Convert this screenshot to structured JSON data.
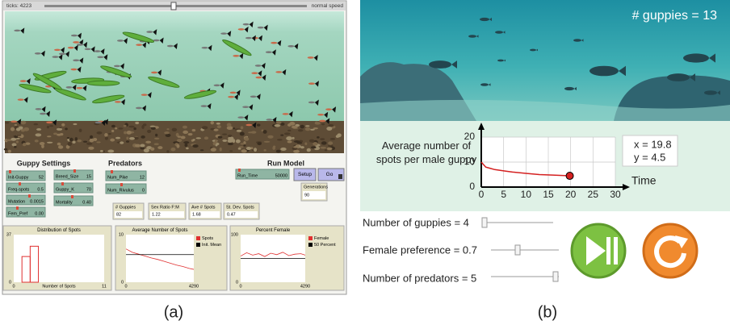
{
  "panel_a": {
    "ticks": "ticks: 4223",
    "speed": "normal speed",
    "sections": [
      "Guppy Settings",
      "Predators",
      "Run Model"
    ],
    "sliders": [
      {
        "label": "Init-Guppy",
        "value": "52"
      },
      {
        "label": "Freq-spots",
        "value": "0.5"
      },
      {
        "label": "Mutation",
        "value": "0.0015"
      },
      {
        "label": "Fem_Pref",
        "value": "0.00"
      },
      {
        "label": "Breed_Size",
        "value": "15"
      },
      {
        "label": "Guppy_K",
        "value": "70"
      },
      {
        "label": "Mortality",
        "value": "0.40"
      },
      {
        "label": "Num_Pike",
        "value": "12"
      },
      {
        "label": "Num_Rivulus",
        "value": "0"
      },
      {
        "label": "Run_Time",
        "value": "50000"
      }
    ],
    "buttons": [
      "Setup",
      "Go"
    ],
    "monitors": [
      {
        "label": "Generations",
        "value": "90"
      },
      {
        "label": "# Guppies",
        "value": "82"
      },
      {
        "label": "Sex Ratio F:M",
        "value": "1.22"
      },
      {
        "label": "Ave # Spots",
        "value": "1.68"
      },
      {
        "label": "St. Dev. Spots",
        "value": "0.47"
      }
    ]
  },
  "panel_b": {
    "count": "# guppies = 13",
    "readout": [
      "x = 19.8",
      "y = 4.5"
    ],
    "controls": [
      "Number of guppies = 4",
      "Female preference = 0.7",
      "Number of predators = 5"
    ]
  },
  "captions": [
    "(a)",
    "(b)"
  ],
  "chart_data": [
    {
      "type": "histogram",
      "title": "Distribution of Spots",
      "x_label": "Number of Spots",
      "bins": [
        0,
        1,
        2,
        3,
        4,
        5,
        6,
        7,
        8,
        9,
        10,
        11
      ],
      "values": [
        0,
        20,
        28,
        0,
        0,
        0,
        0,
        0,
        0,
        0,
        0
      ],
      "color": "#e03030",
      "xlim": [
        0,
        11
      ],
      "xticks": [
        0,
        11
      ],
      "ylim": [
        0,
        37
      ],
      "yticks": [
        0,
        37
      ]
    },
    {
      "type": "line",
      "title": "Average Number of Spots",
      "x": [
        0,
        400,
        800,
        1200,
        1600,
        2000,
        2400,
        2800,
        3200,
        3600,
        4000,
        4290
      ],
      "series": [
        {
          "name": "Spots",
          "color": "#e03030",
          "values": [
            7.0,
            6.3,
            5.9,
            5.5,
            5.1,
            4.8,
            4.4,
            4.0,
            3.6,
            3.3,
            2.9,
            2.7
          ]
        },
        {
          "name": "Init. Mean",
          "color": "#000000",
          "values": [
            5.8,
            5.8,
            5.8,
            5.8,
            5.8,
            5.8,
            5.8,
            5.8,
            5.8,
            5.8,
            5.8,
            5.8
          ]
        }
      ],
      "xlim": [
        0,
        4290
      ],
      "xticks": [
        0,
        4290
      ],
      "ylim": [
        0,
        10
      ],
      "yticks": [
        0,
        10
      ]
    },
    {
      "type": "line",
      "title": "Percent Female",
      "x": [
        0,
        400,
        800,
        1200,
        1600,
        2000,
        2400,
        2800,
        3200,
        3600,
        4000,
        4290
      ],
      "series": [
        {
          "name": "Female",
          "color": "#e03030",
          "values": [
            55,
            62,
            57,
            60,
            54,
            61,
            58,
            63,
            56,
            59,
            60,
            57
          ]
        },
        {
          "name": "50 Percent",
          "color": "#000000",
          "values": [
            50,
            50,
            50,
            50,
            50,
            50,
            50,
            50,
            50,
            50,
            50,
            50
          ]
        }
      ],
      "xlim": [
        0,
        4290
      ],
      "xticks": [
        0,
        4290
      ],
      "ylim": [
        0,
        100
      ],
      "yticks": [
        0,
        100
      ]
    },
    {
      "type": "line",
      "y_label": "Average number of spots per male guppy",
      "x_label": "Time",
      "x": [
        0,
        0.5,
        1,
        2,
        3,
        5,
        7,
        10,
        13,
        16,
        19.8
      ],
      "values": [
        10,
        9,
        8,
        7.5,
        7,
        6.5,
        6,
        5.5,
        5,
        4.8,
        4.5
      ],
      "color": "#d42020",
      "xlim": [
        0,
        30
      ],
      "xticks": [
        0,
        5,
        10,
        15,
        20,
        25,
        30
      ],
      "ylim": [
        0,
        20
      ],
      "yticks": [
        0,
        10,
        20
      ],
      "grid": true
    }
  ]
}
